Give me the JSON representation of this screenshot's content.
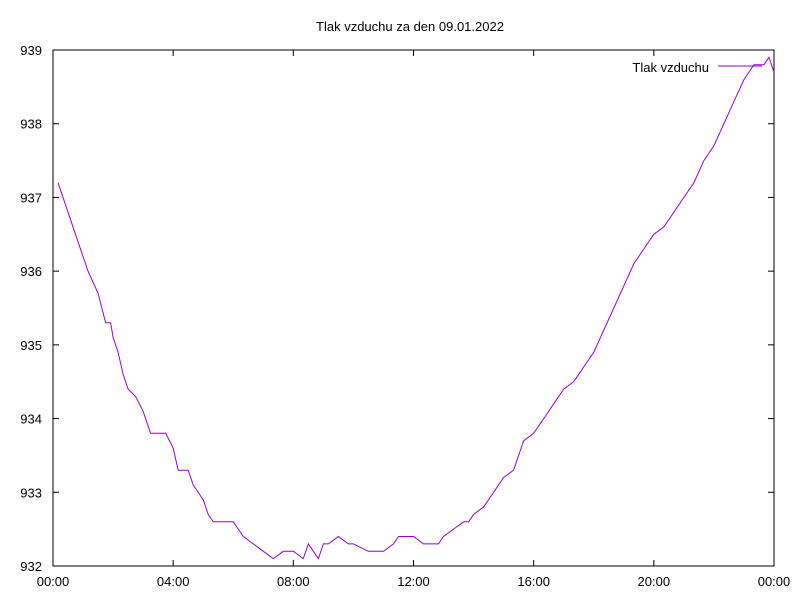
{
  "chart_data": {
    "type": "line",
    "title": "Tlak vzduchu za den 09.01.2022",
    "xlabel": "",
    "ylabel": "",
    "xlim": [
      "00:00",
      "24:00"
    ],
    "ylim": [
      932,
      939
    ],
    "grid": false,
    "legend": "top-right",
    "x_ticks": [
      "00:00",
      "04:00",
      "08:00",
      "12:00",
      "16:00",
      "20:00",
      "00:00"
    ],
    "y_ticks": [
      "932",
      "933",
      "934",
      "935",
      "936",
      "937",
      "938",
      "939"
    ],
    "series": [
      {
        "name": "Tlak vzduchu",
        "color": "#9400d3",
        "x": [
          "00:10",
          "00:20",
          "00:30",
          "00:45",
          "01:00",
          "01:10",
          "01:30",
          "01:45",
          "01:55",
          "02:00",
          "02:10",
          "02:20",
          "02:30",
          "02:45",
          "03:00",
          "03:15",
          "03:30",
          "03:45",
          "04:00",
          "04:10",
          "04:20",
          "04:30",
          "04:40",
          "05:00",
          "05:10",
          "05:20",
          "05:40",
          "05:50",
          "06:00",
          "06:10",
          "06:20",
          "06:40",
          "07:00",
          "07:20",
          "07:40",
          "08:00",
          "08:10",
          "08:20",
          "08:30",
          "08:40",
          "08:50",
          "09:00",
          "09:10",
          "09:20",
          "09:30",
          "09:40",
          "09:50",
          "10:00",
          "10:30",
          "11:00",
          "11:20",
          "11:30",
          "11:40",
          "12:00",
          "12:20",
          "12:40",
          "12:50",
          "13:00",
          "13:20",
          "13:40",
          "13:50",
          "14:00",
          "14:20",
          "14:40",
          "15:00",
          "15:20",
          "15:30",
          "15:40",
          "16:00",
          "16:20",
          "16:40",
          "17:00",
          "17:20",
          "17:30",
          "17:40",
          "18:00",
          "18:20",
          "18:40",
          "19:00",
          "19:20",
          "19:40",
          "20:00",
          "20:20",
          "20:40",
          "21:00",
          "21:20",
          "21:40",
          "22:00",
          "22:20",
          "22:40",
          "23:00",
          "23:20",
          "23:40",
          "23:50",
          "24:00"
        ],
        "values": [
          937.2,
          937.0,
          936.8,
          936.5,
          936.2,
          936.0,
          935.7,
          935.3,
          935.3,
          935.1,
          934.9,
          934.6,
          934.4,
          934.3,
          934.1,
          933.8,
          933.8,
          933.8,
          933.6,
          933.3,
          933.3,
          933.3,
          933.1,
          932.9,
          932.7,
          932.6,
          932.6,
          932.6,
          932.6,
          932.5,
          932.4,
          932.3,
          932.2,
          932.1,
          932.2,
          932.2,
          932.15,
          932.1,
          932.3,
          932.2,
          932.1,
          932.3,
          932.3,
          932.35,
          932.4,
          932.35,
          932.3,
          932.3,
          932.2,
          932.2,
          932.3,
          932.4,
          932.4,
          932.4,
          932.3,
          932.3,
          932.3,
          932.4,
          932.5,
          932.6,
          932.6,
          932.7,
          932.8,
          933.0,
          933.2,
          933.3,
          933.5,
          933.7,
          933.8,
          934.0,
          934.2,
          934.4,
          934.5,
          934.6,
          934.7,
          934.9,
          935.2,
          935.5,
          935.8,
          936.1,
          936.3,
          936.5,
          936.6,
          936.8,
          937.0,
          937.2,
          937.5,
          937.7,
          938.0,
          938.3,
          938.6,
          938.8,
          938.8,
          938.9,
          938.7
        ]
      }
    ]
  }
}
